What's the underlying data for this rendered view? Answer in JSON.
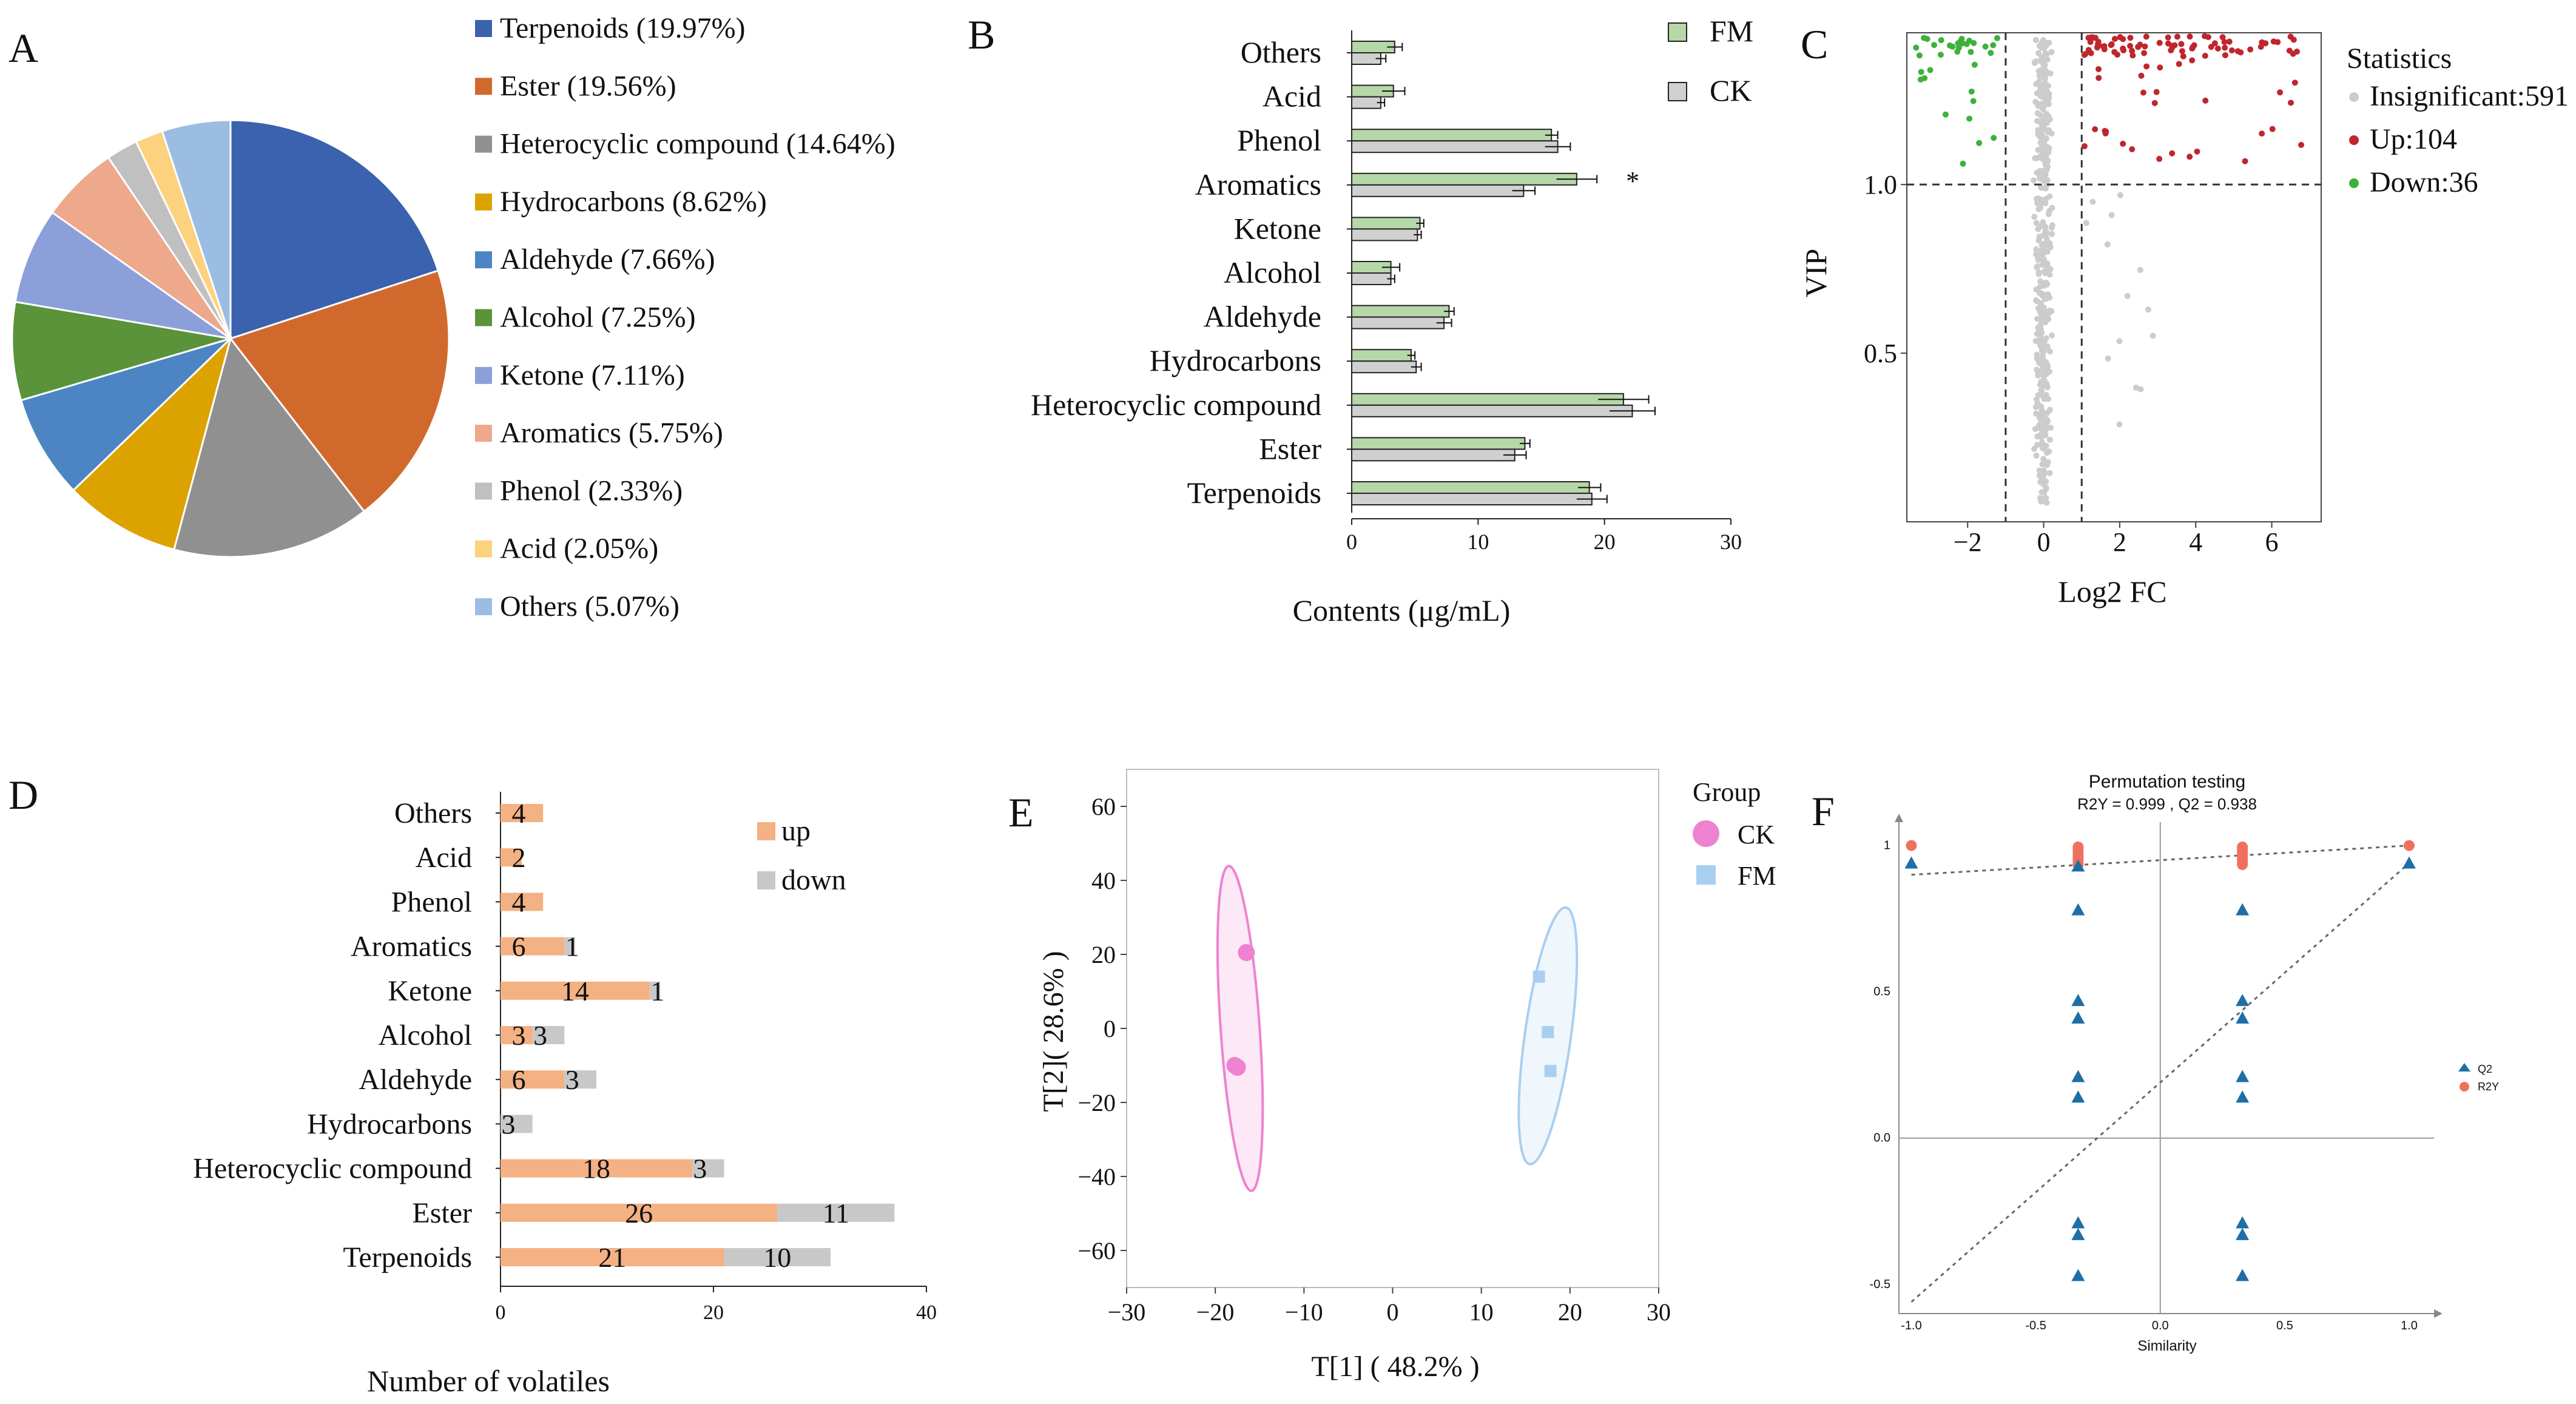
{
  "panel_labels": {
    "a": "A",
    "b": "B",
    "c": "C",
    "d": "D",
    "e": "E",
    "f": "F"
  },
  "chart_data": [
    {
      "panel": "A",
      "type": "pie",
      "colors": [
        "#3b62ae",
        "#d2692c",
        "#909090",
        "#dca300",
        "#4d85c4",
        "#5a9339",
        "#8b9fd9",
        "#eea88b",
        "#c0c0c0",
        "#fcd27e",
        "#9bbde3"
      ],
      "slices": [
        {
          "name": "Terpenoids",
          "value": 19.97,
          "legend": "Terpenoids (19.97%)"
        },
        {
          "name": "Ester",
          "value": 19.56,
          "legend": "Ester (19.56%)"
        },
        {
          "name": "Heterocyclic compound",
          "value": 14.64,
          "legend": "Heterocyclic compound (14.64%)"
        },
        {
          "name": "Hydrocarbons",
          "value": 8.62,
          "legend": "Hydrocarbons (8.62%)"
        },
        {
          "name": "Aldehyde",
          "value": 7.66,
          "legend": "Aldehyde (7.66%)"
        },
        {
          "name": "Alcohol",
          "value": 7.25,
          "legend": "Alcohol (7.25%)"
        },
        {
          "name": "Ketone",
          "value": 7.11,
          "legend": "Ketone (7.11%)"
        },
        {
          "name": "Aromatics",
          "value": 5.75,
          "legend": "Aromatics (5.75%)"
        },
        {
          "name": "Phenol",
          "value": 2.33,
          "legend": "Phenol (2.33%)"
        },
        {
          "name": "Acid",
          "value": 2.05,
          "legend": "Acid (2.05%)"
        },
        {
          "name": "Others",
          "value": 5.07,
          "legend": "Others (5.07%)"
        }
      ]
    },
    {
      "panel": "B",
      "type": "bar",
      "orientation": "horizontal",
      "categories": [
        "Others",
        "Acid",
        "Phenol",
        "Aromatics",
        "Ketone",
        "Alcohol",
        "Aldehyde",
        "Hydrocarbons",
        "Heterocyclic compound",
        "Ester",
        "Terpenoids"
      ],
      "series": [
        {
          "name": "FM",
          "color": "#b6d7a8",
          "values": [
            3.4,
            3.3,
            15.8,
            17.8,
            5.4,
            3.1,
            7.7,
            4.7,
            21.5,
            13.7,
            18.8
          ],
          "errors": [
            0.6,
            0.9,
            0.5,
            1.6,
            0.3,
            0.7,
            0.4,
            0.3,
            2.0,
            0.4,
            0.9
          ]
        },
        {
          "name": "CK",
          "color": "#d0d0d0",
          "values": [
            2.3,
            2.3,
            16.3,
            13.6,
            5.2,
            3.1,
            7.3,
            5.1,
            22.2,
            12.9,
            19.0
          ],
          "errors": [
            0.4,
            0.3,
            1.0,
            0.9,
            0.3,
            0.3,
            0.6,
            0.4,
            1.8,
            0.9,
            1.2
          ]
        }
      ],
      "annotations": [
        {
          "category": "Aromatics",
          "text": "*"
        }
      ],
      "xlim": [
        0,
        30
      ],
      "xticks": [
        "0",
        "10",
        "20",
        "30"
      ],
      "xlabel": "Contents (μg/mL)",
      "ylabel": ""
    },
    {
      "panel": "C",
      "type": "scatter",
      "title": "",
      "xlabel": "Log2 FC",
      "ylabel": "VIP",
      "xlim": [
        -3.6,
        7.3
      ],
      "ylim": [
        0.0,
        1.45
      ],
      "xticks": [
        "−2",
        "0",
        "2",
        "4",
        "6"
      ],
      "yticks": [
        "0.5",
        "1.0"
      ],
      "thresholds": {
        "vip": 1.0,
        "log2fc": [
          -1,
          1
        ]
      },
      "legend_title": "Statistics",
      "series": [
        {
          "name": "Insignificant",
          "count": 591,
          "label": "Insignificant:591",
          "color": "#cccccc"
        },
        {
          "name": "Up",
          "count": 104,
          "label": "Up:104",
          "color": "#c0262d"
        },
        {
          "name": "Down",
          "count": 36,
          "label": "Down:36",
          "color": "#3db13a"
        }
      ]
    },
    {
      "panel": "D",
      "type": "bar",
      "orientation": "horizontal",
      "stacked": true,
      "categories": [
        "Others",
        "Acid",
        "Phenol",
        "Aromatics",
        "Ketone",
        "Alcohol",
        "Aldehyde",
        "Hydrocarbons",
        "Heterocyclic compound",
        "Ester",
        "Terpenoids"
      ],
      "series": [
        {
          "name": "up",
          "color": "#f4b183",
          "values": [
            4,
            2,
            4,
            6,
            14,
            3,
            6,
            0,
            18,
            26,
            21
          ]
        },
        {
          "name": "down",
          "color": "#c8c8c8",
          "values": [
            0,
            0,
            0,
            1,
            1,
            3,
            3,
            3,
            3,
            11,
            10
          ]
        }
      ],
      "xlim": [
        0,
        40
      ],
      "xticks": [
        "0",
        "20",
        "40"
      ],
      "xlabel": "Number of volatiles"
    },
    {
      "panel": "E",
      "type": "scatter",
      "xlabel": "T[1] ( 48.2% )",
      "ylabel": "T[2]( 28.6% )",
      "xlim": [
        -30,
        30
      ],
      "ylim": [
        -70,
        70
      ],
      "xticks": [
        "−30",
        "−20",
        "−10",
        "0",
        "10",
        "20",
        "30"
      ],
      "yticks": [
        "−60",
        "−40",
        "−20",
        "0",
        "20",
        "40",
        "60"
      ],
      "legend_title": "Group",
      "series": [
        {
          "name": "CK",
          "color": "#ee82d0",
          "marker": "circle",
          "points": [
            [
              -16.5,
              20.5
            ],
            [
              -17.8,
              -10
            ],
            [
              -17.5,
              -10.5
            ]
          ]
        },
        {
          "name": "FM",
          "color": "#a9cff0",
          "marker": "square",
          "points": [
            [
              16.5,
              14
            ],
            [
              17.5,
              -1
            ],
            [
              17.8,
              -11.5
            ]
          ]
        }
      ]
    },
    {
      "panel": "F",
      "type": "scatter",
      "title": "Permutation testing",
      "subtitle": "R2Y = 0.999 ,  Q2 = 0.938",
      "xlabel": "Similarity",
      "ylabel": "",
      "xlim": [
        -1.05,
        1.1
      ],
      "ylim": [
        -0.6,
        1.08
      ],
      "xticks": [
        "-1.0",
        "-0.5",
        "0.0",
        "0.5",
        "1.0"
      ],
      "yticks": [
        "-0.5",
        "0.0",
        "0.5",
        "1"
      ],
      "series": [
        {
          "name": "Q2",
          "color": "#1f6ea8",
          "marker": "triangle",
          "x": [
            -1.0,
            1.0,
            -0.33,
            -0.33,
            -0.33,
            -0.33,
            -0.33,
            -0.33,
            -0.33,
            -0.33,
            -0.33,
            0.33,
            0.33,
            0.33,
            0.33,
            0.33,
            0.33,
            0.33,
            0.33
          ],
          "y": [
            0.94,
            0.94,
            0.78,
            0.47,
            0.41,
            0.21,
            0.14,
            -0.29,
            -0.33,
            -0.47,
            0.93,
            0.78,
            0.47,
            0.41,
            0.21,
            0.14,
            -0.29,
            -0.33,
            -0.47
          ]
        },
        {
          "name": "R2Y",
          "color": "#f07060",
          "marker": "circle",
          "x": [
            -1.0,
            1.0,
            -0.33,
            -0.33,
            -0.33,
            -0.33,
            -0.33,
            -0.33,
            -0.33,
            0.33,
            0.33,
            0.33,
            0.33,
            0.33,
            0.33,
            0.33
          ],
          "y": [
            1.0,
            1.0,
            0.995,
            0.985,
            0.975,
            0.965,
            0.955,
            0.945,
            0.935,
            0.995,
            0.985,
            0.975,
            0.965,
            0.955,
            0.945,
            0.935
          ]
        }
      ],
      "regression_lines": [
        {
          "name": "R2Y",
          "intercept": 0.9,
          "x0": -1.0,
          "y0": 0.9,
          "x1": 1.0,
          "y1": 1.0
        },
        {
          "name": "Q2",
          "intercept": -0.56,
          "x0": -1.0,
          "y0": -0.56,
          "x1": 1.0,
          "y1": 0.94
        }
      ]
    }
  ]
}
